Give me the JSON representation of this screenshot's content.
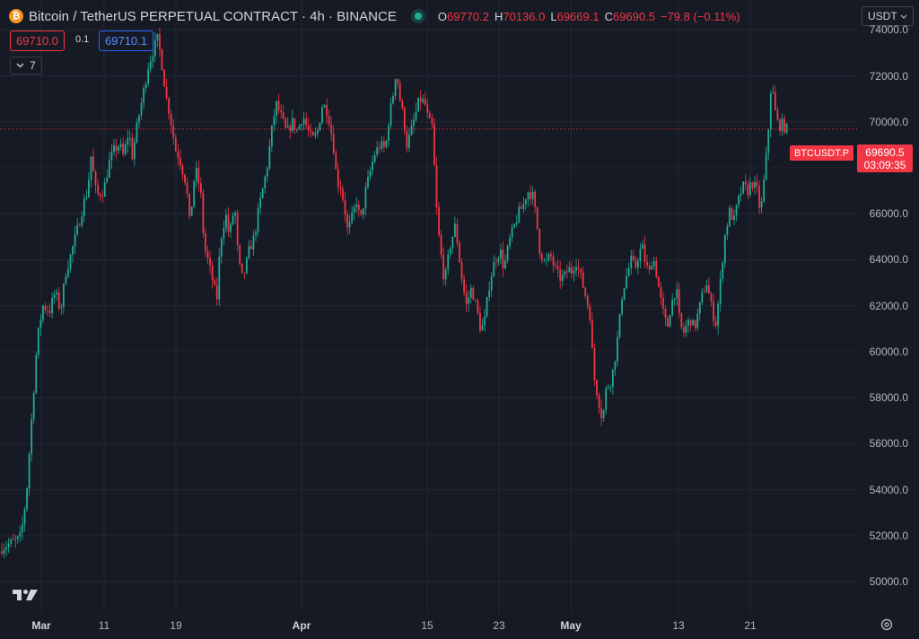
{
  "header": {
    "coin_glyph": "₿",
    "title": "Bitcoin / TetherUS PERPETUAL CONTRACT · 4h · BINANCE",
    "ohlc": [
      {
        "key": "O",
        "value": "69770.2"
      },
      {
        "key": "H",
        "value": "70136.0"
      },
      {
        "key": "L",
        "value": "69669.1"
      },
      {
        "key": "C",
        "value": "69690.5"
      }
    ],
    "change": "−79.8 (−0.11%)"
  },
  "trade": {
    "sell_price": "69710.0",
    "spread": "0.1",
    "buy_price": "69710.1"
  },
  "indicators": {
    "count": "7"
  },
  "currency": {
    "selected": "USDT"
  },
  "price_label": {
    "symbol": "BTCUSDT.P",
    "last": "69690.5",
    "countdown": "03:09:35"
  },
  "colors": {
    "background": "#161a25",
    "up": "#22ab94",
    "down": "#f23645",
    "grid": "#232733",
    "label": "#b2b5be"
  },
  "icons": {
    "chevron": "chevron-down-icon",
    "settings": "gear-icon",
    "logo": "tradingview-logo-icon"
  },
  "chart_data": {
    "type": "candlestick",
    "title": "Bitcoin / TetherUS PERPETUAL CONTRACT · 4h · BINANCE",
    "interval": "4h",
    "ylim": [
      48600,
      75300
    ],
    "y_ticks": [
      {
        "value": 74000,
        "label": "74000.0"
      },
      {
        "value": 72000,
        "label": "72000.0"
      },
      {
        "value": 70000,
        "label": "70000.0"
      },
      {
        "value": 68000,
        "label": "68000.0"
      },
      {
        "value": 66000,
        "label": "66000.0"
      },
      {
        "value": 64000,
        "label": "64000.0"
      },
      {
        "value": 62000,
        "label": "62000.0"
      },
      {
        "value": 60000,
        "label": "60000.0"
      },
      {
        "value": 58000,
        "label": "58000.0"
      },
      {
        "value": 56000,
        "label": "56000.0"
      },
      {
        "value": 54000,
        "label": "54000.0"
      },
      {
        "value": 52000,
        "label": "52000.0"
      },
      {
        "value": 50000,
        "label": "50000.0"
      }
    ],
    "x_ticks": [
      {
        "day": 4,
        "label": "Mar",
        "major": true
      },
      {
        "day": 11,
        "label": "11",
        "major": false
      },
      {
        "day": 19,
        "label": "19",
        "major": false
      },
      {
        "day": 33,
        "label": "Apr",
        "major": true
      },
      {
        "day": 47,
        "label": "15",
        "major": false
      },
      {
        "day": 55,
        "label": "23",
        "major": false
      },
      {
        "day": 63,
        "label": "May",
        "major": true
      },
      {
        "day": 75,
        "label": "13",
        "major": false
      },
      {
        "day": 83,
        "label": "21",
        "major": false
      }
    ],
    "x_range": {
      "start_day": -0.6,
      "days_per_unit": 0.1
    },
    "last_price": 69690.5,
    "path": [
      [
        0,
        51200
      ],
      [
        5,
        51500
      ],
      [
        22,
        51800
      ],
      [
        26,
        52000
      ],
      [
        32,
        53800
      ],
      [
        38,
        57200
      ],
      [
        44,
        60500
      ],
      [
        50,
        62000
      ],
      [
        58,
        61800
      ],
      [
        64,
        62600
      ],
      [
        70,
        61800
      ],
      [
        76,
        63500
      ],
      [
        80,
        64000
      ],
      [
        88,
        65200
      ],
      [
        96,
        66500
      ],
      [
        100,
        67000
      ],
      [
        104,
        68500
      ],
      [
        110,
        66800
      ],
      [
        118,
        67000
      ],
      [
        124,
        68200
      ],
      [
        130,
        68800
      ],
      [
        136,
        69000
      ],
      [
        140,
        68500
      ],
      [
        146,
        69600
      ],
      [
        150,
        68500
      ],
      [
        156,
        70000
      ],
      [
        162,
        71200
      ],
      [
        168,
        72500
      ],
      [
        174,
        73200
      ],
      [
        178,
        73600
      ],
      [
        182,
        72800
      ],
      [
        188,
        71000
      ],
      [
        192,
        70300
      ],
      [
        198,
        68800
      ],
      [
        202,
        68500
      ],
      [
        210,
        67300
      ],
      [
        214,
        65500
      ],
      [
        220,
        68000
      ],
      [
        226,
        67000
      ],
      [
        230,
        64600
      ],
      [
        234,
        64000
      ],
      [
        240,
        63000
      ],
      [
        244,
        62200
      ],
      [
        248,
        64800
      ],
      [
        254,
        66000
      ],
      [
        258,
        65000
      ],
      [
        264,
        66400
      ],
      [
        268,
        64000
      ],
      [
        272,
        63200
      ],
      [
        276,
        63600
      ],
      [
        280,
        64400
      ],
      [
        286,
        65000
      ],
      [
        290,
        66000
      ],
      [
        296,
        67200
      ],
      [
        300,
        68000
      ],
      [
        306,
        69800
      ],
      [
        310,
        70800
      ],
      [
        316,
        70200
      ],
      [
        322,
        69500
      ],
      [
        328,
        70000
      ],
      [
        334,
        69600
      ],
      [
        340,
        70300
      ],
      [
        344,
        69800
      ],
      [
        350,
        69200
      ],
      [
        356,
        69500
      ],
      [
        362,
        70800
      ],
      [
        368,
        70400
      ],
      [
        374,
        69000
      ],
      [
        378,
        67400
      ],
      [
        382,
        67200
      ],
      [
        386,
        66400
      ],
      [
        390,
        65200
      ],
      [
        396,
        66000
      ],
      [
        400,
        66600
      ],
      [
        404,
        65600
      ],
      [
        410,
        67000
      ],
      [
        416,
        68000
      ],
      [
        420,
        68600
      ],
      [
        426,
        69000
      ],
      [
        432,
        68800
      ],
      [
        436,
        70200
      ],
      [
        440,
        71000
      ],
      [
        444,
        72300
      ],
      [
        448,
        71000
      ],
      [
        452,
        70200
      ],
      [
        456,
        69000
      ],
      [
        460,
        69500
      ],
      [
        466,
        70400
      ],
      [
        470,
        71000
      ],
      [
        476,
        70800
      ],
      [
        480,
        70000
      ],
      [
        484,
        69800
      ],
      [
        490,
        65500
      ],
      [
        494,
        64200
      ],
      [
        498,
        63000
      ],
      [
        504,
        64600
      ],
      [
        510,
        65500
      ],
      [
        516,
        63500
      ],
      [
        522,
        62000
      ],
      [
        528,
        62800
      ],
      [
        534,
        61800
      ],
      [
        538,
        61000
      ],
      [
        542,
        61200
      ],
      [
        548,
        63000
      ],
      [
        554,
        64000
      ],
      [
        560,
        64400
      ],
      [
        564,
        63600
      ],
      [
        570,
        64800
      ],
      [
        576,
        65500
      ],
      [
        580,
        66000
      ],
      [
        586,
        66400
      ],
      [
        590,
        67000
      ],
      [
        596,
        66800
      ],
      [
        600,
        65800
      ],
      [
        604,
        64400
      ],
      [
        610,
        63800
      ],
      [
        616,
        64200
      ],
      [
        620,
        63700
      ],
      [
        626,
        63200
      ],
      [
        632,
        63300
      ],
      [
        636,
        63600
      ],
      [
        640,
        63500
      ],
      [
        644,
        64000
      ],
      [
        650,
        63200
      ],
      [
        654,
        62600
      ],
      [
        660,
        61600
      ],
      [
        664,
        59000
      ],
      [
        670,
        57800
      ],
      [
        674,
        57000
      ],
      [
        678,
        58400
      ],
      [
        684,
        58800
      ],
      [
        688,
        59800
      ],
      [
        692,
        61000
      ],
      [
        696,
        62600
      ],
      [
        700,
        63200
      ],
      [
        706,
        64000
      ],
      [
        710,
        63600
      ],
      [
        714,
        64200
      ],
      [
        718,
        64600
      ],
      [
        722,
        63800
      ],
      [
        726,
        63400
      ],
      [
        730,
        64200
      ],
      [
        734,
        63400
      ],
      [
        738,
        62400
      ],
      [
        742,
        61600
      ],
      [
        746,
        61000
      ],
      [
        750,
        62000
      ],
      [
        756,
        62800
      ],
      [
        760,
        61200
      ],
      [
        764,
        60800
      ],
      [
        768,
        61200
      ],
      [
        772,
        61400
      ],
      [
        776,
        61000
      ],
      [
        780,
        61600
      ],
      [
        786,
        62600
      ],
      [
        790,
        63000
      ],
      [
        796,
        61800
      ],
      [
        800,
        61200
      ],
      [
        804,
        62500
      ],
      [
        810,
        65000
      ],
      [
        816,
        66200
      ],
      [
        820,
        65600
      ],
      [
        824,
        66400
      ],
      [
        830,
        67200
      ],
      [
        836,
        67000
      ],
      [
        840,
        67400
      ],
      [
        846,
        67000
      ],
      [
        850,
        66000
      ],
      [
        854,
        67500
      ],
      [
        858,
        69200
      ],
      [
        862,
        71800
      ],
      [
        866,
        70500
      ],
      [
        870,
        69800
      ],
      [
        874,
        69900
      ],
      [
        878,
        69690
      ]
    ]
  }
}
